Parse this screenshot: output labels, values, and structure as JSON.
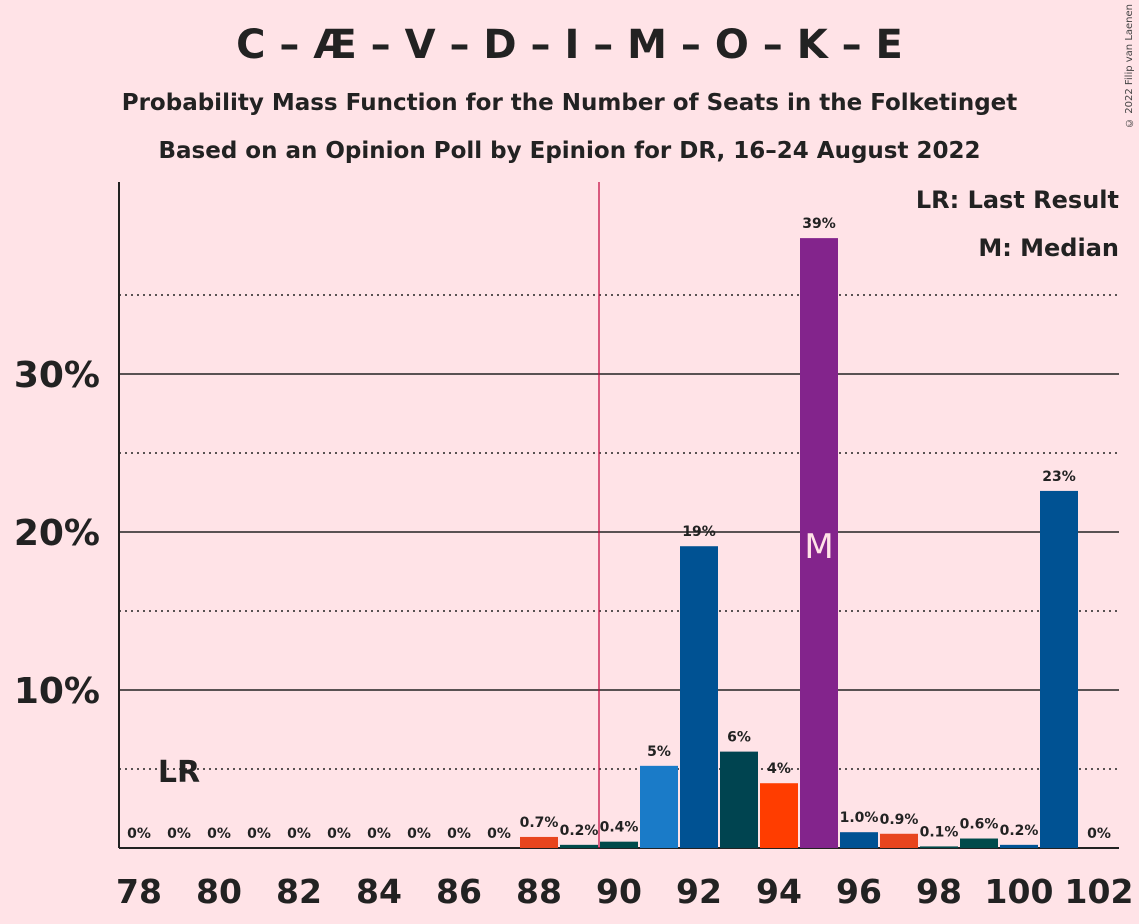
{
  "title": "C – Æ – V – D – I – M – O – K – E",
  "subtitle1": "Probability Mass Function for the Number of Seats in the Folketinget",
  "subtitle2": "Based on an Opinion Poll by Epinion for DR, 16–24 August 2022",
  "copyright": "© 2022 Filip van Laenen",
  "legend": {
    "lr": "LR: Last Result",
    "median": "M: Median"
  },
  "colors": {
    "background": "#ffe3e7",
    "last_result_line": "#c0003a"
  },
  "chart_data": {
    "type": "bar",
    "x": [
      78,
      79,
      80,
      81,
      82,
      83,
      84,
      85,
      86,
      87,
      88,
      89,
      90,
      91,
      92,
      93,
      94,
      95,
      96,
      97,
      98,
      99,
      100,
      101,
      102
    ],
    "values": [
      0,
      0,
      0,
      0,
      0,
      0,
      0,
      0,
      0,
      0,
      0.7,
      0.2,
      0.4,
      5.2,
      19.1,
      6.1,
      4.1,
      38.6,
      1.0,
      0.9,
      0.1,
      0.6,
      0.2,
      22.6,
      0
    ],
    "labels": [
      "0%",
      "0%",
      "0%",
      "0%",
      "0%",
      "0%",
      "0%",
      "0%",
      "0%",
      "0%",
      "0.7%",
      "0.2%",
      "0.4%",
      "5%",
      "19%",
      "6%",
      "4%",
      "39%",
      "1.0%",
      "0.9%",
      "0.1%",
      "0.6%",
      "0.2%",
      "23%",
      "0%"
    ],
    "bar_colors": [
      "#005293",
      "#005293",
      "#005293",
      "#005293",
      "#005293",
      "#005293",
      "#005293",
      "#005293",
      "#005293",
      "#005293",
      "#e8451e",
      "#004b4b",
      "#004b4b",
      "#1a7bc8",
      "#005293",
      "#004450",
      "#ff3d00",
      "#83248c",
      "#005293",
      "#e8451e",
      "#004b4b",
      "#004b4b",
      "#005293",
      "#005293",
      "#005293"
    ],
    "x_ticks": [
      "78",
      "80",
      "82",
      "84",
      "86",
      "88",
      "90",
      "92",
      "94",
      "96",
      "98",
      "100",
      "102"
    ],
    "y_ticks": [
      "10%",
      "20%",
      "30%"
    ],
    "y_tick_values": [
      10,
      20,
      30
    ],
    "y_minor_values": [
      5,
      15,
      25,
      35
    ],
    "ylim": [
      0,
      42
    ],
    "last_result_seat": 79,
    "last_result_label": "LR",
    "median_seat": 95,
    "median_label": "M",
    "majority_line_x": 89.5,
    "grid": true
  }
}
